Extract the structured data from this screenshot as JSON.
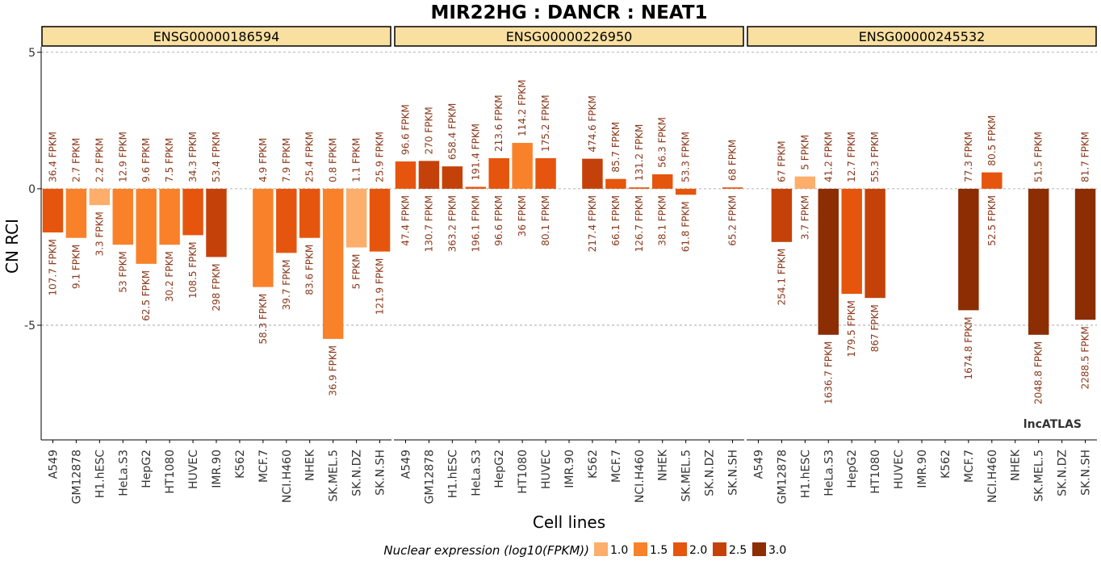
{
  "chart_data": {
    "type": "bar",
    "title": "MIR22HG : DANCR : NEAT1",
    "xlabel": "Cell lines",
    "ylabel": "CN RCI",
    "ylim": [
      -9.2,
      5.2
    ],
    "yticks": [
      5,
      0,
      -5
    ],
    "ytick_labels": [
      "5",
      "0",
      "-5"
    ],
    "grid": "dashed horizontal at 5, 0, -5",
    "watermark": "lncATLAS",
    "categories": [
      "A549",
      "GM12878",
      "H1.hESC",
      "HeLa.S3",
      "HepG2",
      "HT1080",
      "HUVEC",
      "IMR.90",
      "K562",
      "MCF.7",
      "NCI.H460",
      "NHEK",
      "SK.MEL.5",
      "SK.N.DZ",
      "SK.N.SH"
    ],
    "legend": {
      "title": "Nuclear expression (log10(FPKM))",
      "placement": "bottom",
      "entries": [
        {
          "label": "1.0",
          "color": "#fdae6b"
        },
        {
          "label": "1.5",
          "color": "#f9812a"
        },
        {
          "label": "2.0",
          "color": "#e6550d"
        },
        {
          "label": "2.5",
          "color": "#c4420a"
        },
        {
          "label": "3.0",
          "color": "#8c2d04"
        }
      ]
    },
    "colors": {
      "strip_fill": "#f9dfa0",
      "label_text": "#8b3a1c",
      "grid": "#999999"
    },
    "panels": [
      {
        "name": "ENSG00000186594",
        "rci": [
          -1.6,
          -1.8,
          -0.6,
          -2.05,
          -2.75,
          -2.05,
          -1.7,
          -2.5,
          null,
          -3.6,
          -2.35,
          -1.8,
          -5.5,
          -2.15,
          -2.3
        ],
        "top_labels": [
          "36.4 FPKM",
          "2.7 FPKM",
          "2.2 FPKM",
          "12.9 FPKM",
          "9.6 FPKM",
          "7.5 FPKM",
          "34.3 FPKM",
          "53.4 FPKM",
          "",
          "4.9 FPKM",
          "7.9 FPKM",
          "25.4 FPKM",
          "0.8 FPKM",
          "1.1 FPKM",
          "25.9 FPKM"
        ],
        "bottom_labels": [
          "107.7 FPKM",
          "9.1 FPKM",
          "3.3 FPKM",
          "53 FPKM",
          "62.5 FPKM",
          "30.2 FPKM",
          "108.5 FPKM",
          "298 FPKM",
          "",
          "58.3 FPKM",
          "39.7 FPKM",
          "83.6 FPKM",
          "36.9 FPKM",
          "5 FPKM",
          "121.9 FPKM"
        ],
        "colors": [
          "#e6550d",
          "#f9812a",
          "#fdae6b",
          "#f9812a",
          "#f9812a",
          "#f9812a",
          "#e6550d",
          "#c4420a",
          null,
          "#f9812a",
          "#e6550d",
          "#e6550d",
          "#f9812a",
          "#fdae6b",
          "#e6550d"
        ]
      },
      {
        "name": "ENSG00000226950",
        "rci": [
          1.0,
          1.02,
          0.82,
          0.07,
          1.12,
          1.68,
          1.12,
          null,
          1.1,
          0.36,
          0.05,
          0.53,
          -0.22,
          null,
          0.05
        ],
        "top_labels": [
          "96.6 FPKM",
          "270 FPKM",
          "658.4 FPKM",
          "191.4 FPKM",
          "213.6 FPKM",
          "114.2 FPKM",
          "175.2 FPKM",
          "",
          "474.6 FPKM",
          "85.7 FPKM",
          "131.2 FPKM",
          "56.3 FPKM",
          "53.3 FPKM",
          "",
          "68 FPKM"
        ],
        "bottom_labels": [
          "47.4 FPKM",
          "130.7 FPKM",
          "363.2 FPKM",
          "196.1 FPKM",
          "96.6 FPKM",
          "36 FPKM",
          "80.1 FPKM",
          "",
          "217.4 FPKM",
          "66.1 FPKM",
          "126.7 FPKM",
          "38.1 FPKM",
          "61.8 FPKM",
          "",
          "65.2 FPKM"
        ],
        "colors": [
          "#e6550d",
          "#c4420a",
          "#c4420a",
          "#e6550d",
          "#e6550d",
          "#f9812a",
          "#e6550d",
          null,
          "#c4420a",
          "#e6550d",
          "#e6550d",
          "#e6550d",
          "#e6550d",
          null,
          "#e6550d"
        ]
      },
      {
        "name": "ENSG00000245532",
        "rci": [
          null,
          -1.95,
          0.45,
          -5.35,
          -3.85,
          -4.0,
          null,
          null,
          null,
          -4.45,
          0.6,
          null,
          -5.35,
          null,
          -4.8
        ],
        "top_labels": [
          "",
          "67 FPKM",
          "5 FPKM",
          "41.2 FPKM",
          "12.7 FPKM",
          "55.3 FPKM",
          "",
          "",
          "",
          "77.3 FPKM",
          "80.5 FPKM",
          "",
          "51.5 FPKM",
          "",
          "81.7 FPKM"
        ],
        "bottom_labels": [
          "",
          "254.1 FPKM",
          "3.7 FPKM",
          "1636.7 FPKM",
          "179.5 FPKM",
          "867 FPKM",
          "",
          "",
          "",
          "1674.8 FPKM",
          "52.5 FPKM",
          "",
          "2048.8 FPKM",
          "",
          "2288.5 FPKM"
        ],
        "colors": [
          null,
          "#c4420a",
          "#fdae6b",
          "#8c2d04",
          "#e6550d",
          "#c4420a",
          null,
          null,
          null,
          "#8c2d04",
          "#e6550d",
          null,
          "#8c2d04",
          null,
          "#8c2d04"
        ]
      }
    ]
  }
}
